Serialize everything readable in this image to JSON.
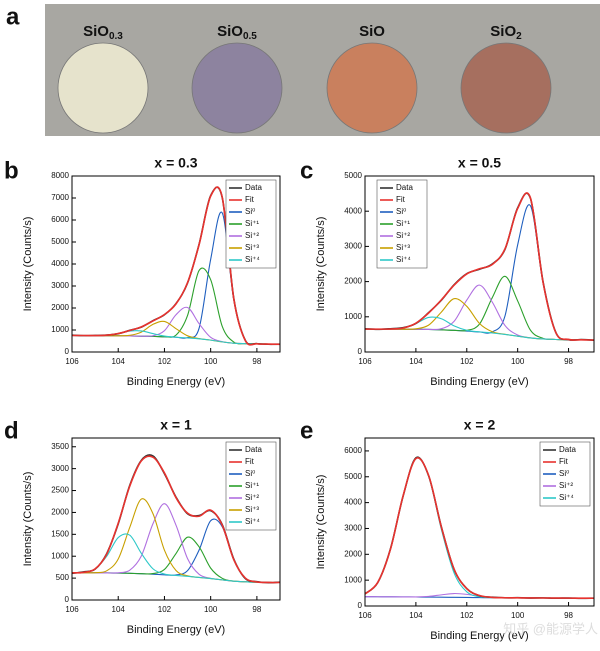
{
  "panel_labels": [
    "a",
    "b",
    "c",
    "d",
    "e"
  ],
  "photo": {
    "samples": [
      {
        "formula": "SiO",
        "subscript": "0.3",
        "color": "#e6e3cc"
      },
      {
        "formula": "SiO",
        "subscript": "0.5",
        "color": "#8d839f"
      },
      {
        "formula": "SiO",
        "subscript": null,
        "color": "#c9805e"
      },
      {
        "formula": "SiO",
        "subscript": "2",
        "color": "#a66f5f"
      }
    ]
  },
  "watermark": "知乎 @能源学人",
  "chart_data": [
    {
      "type": "line",
      "title": "x = 0.3",
      "x_label": "Binding Energy (eV)",
      "y_label": "Intensity (Counts/s)",
      "x": [
        106,
        105.5,
        105,
        104.5,
        104,
        103.5,
        103,
        102.5,
        102,
        101.5,
        101,
        100.5,
        100,
        99.5,
        99,
        98.5,
        98,
        97.5,
        97
      ],
      "xlim": [
        106,
        97
      ],
      "xticks": [
        106,
        104,
        102,
        100,
        98
      ],
      "ylim": [
        0,
        8000
      ],
      "yticks": [
        0,
        1000,
        2000,
        3000,
        4000,
        5000,
        6000,
        7000,
        8000
      ],
      "legend": "upper right",
      "series": [
        {
          "name": "Data",
          "color": "#333333",
          "values": [
            762,
            744,
            753,
            770,
            833,
            986,
            1131,
            1421,
            1692,
            2201,
            3138,
            4902,
            7110,
            7018,
            2436,
            530,
            381,
            352,
            356
          ]
        },
        {
          "name": "Fit",
          "color": "#e8322e",
          "values": [
            750,
            750,
            748,
            764,
            840,
            978,
            1142,
            1410,
            1704,
            2187,
            3153,
            4886,
            7084,
            7037,
            2419,
            518,
            372,
            360,
            350
          ]
        },
        {
          "name": "Si⁰",
          "color": "#1f5fbf",
          "values": [
            750,
            750,
            745,
            740,
            735,
            730,
            720,
            710,
            690,
            670,
            653,
            1082,
            4212,
            6323,
            2366,
            518,
            372,
            360,
            350
          ]
        },
        {
          "name": "Si⁺¹",
          "color": "#2ca02c",
          "values": [
            750,
            750,
            745,
            740,
            735,
            730,
            720,
            710,
            693,
            768,
            1662,
            3707,
            3287,
            1166,
            453,
            380,
            370,
            360,
            350
          ]
        },
        {
          "name": "Si⁺²",
          "color": "#b070e0",
          "values": [
            750,
            750,
            745,
            740,
            735,
            730,
            720,
            738,
            969,
            1694,
            2022,
            1287,
            665,
            468,
            400,
            380,
            370,
            360,
            350
          ]
        },
        {
          "name": "Si⁺³",
          "color": "#c8a000",
          "values": [
            750,
            750,
            745,
            740,
            737,
            758,
            906,
            1255,
            1388,
            1061,
            736,
            610,
            540,
            460,
            400,
            380,
            370,
            360,
            350
          ]
        },
        {
          "name": "Si⁺⁴",
          "color": "#2ec8c8",
          "values": [
            750,
            750,
            748,
            764,
            838,
            950,
            956,
            837,
            724,
            674,
            640,
            600,
            540,
            460,
            400,
            380,
            370,
            360,
            350
          ]
        }
      ]
    },
    {
      "type": "line",
      "title": "x = 0.5",
      "x_label": "Binding Energy (eV)",
      "y_label": "Intensity (Counts/s)",
      "x": [
        106,
        105.5,
        105,
        104.5,
        104,
        103.5,
        103,
        102.5,
        102,
        101.5,
        101,
        100.5,
        100,
        99.5,
        99,
        98.5,
        98,
        97.5,
        97
      ],
      "xlim": [
        106,
        97
      ],
      "xticks": [
        106,
        104,
        102,
        100,
        98
      ],
      "ylim": [
        0,
        5000
      ],
      "yticks": [
        0,
        1000,
        2000,
        3000,
        4000,
        5000
      ],
      "legend": "upper left",
      "series": [
        {
          "name": "Data",
          "color": "#333333",
          "values": [
            658,
            643,
            660,
            690,
            812,
            1118,
            1470,
            1910,
            2226,
            2352,
            2501,
            2915,
            4095,
            4370,
            1988,
            556,
            350,
            352,
            334
          ]
        },
        {
          "name": "Fit",
          "color": "#e8322e",
          "values": [
            650,
            650,
            653,
            682,
            820,
            1108,
            1481,
            1897,
            2218,
            2365,
            2487,
            2927,
            4078,
            4382,
            1970,
            548,
            357,
            345,
            340
          ]
        },
        {
          "name": "Si⁰",
          "color": "#1f5fbf",
          "values": [
            650,
            650,
            650,
            648,
            645,
            640,
            630,
            615,
            595,
            570,
            570,
            1020,
            3045,
            4157,
            1952,
            548,
            357,
            345,
            340
          ]
        },
        {
          "name": "Si⁺¹",
          "color": "#2ca02c",
          "values": [
            650,
            650,
            650,
            648,
            645,
            640,
            630,
            615,
            613,
            793,
            1541,
            2150,
            1451,
            623,
            388,
            355,
            350,
            345,
            340
          ]
        },
        {
          "name": "Si⁺²",
          "color": "#b070e0",
          "values": [
            650,
            650,
            650,
            648,
            645,
            642,
            662,
            870,
            1475,
            1900,
            1420,
            755,
            482,
            402,
            370,
            355,
            350,
            345,
            340
          ]
        },
        {
          "name": "Si⁺³",
          "color": "#c8a000",
          "values": [
            650,
            650,
            650,
            648,
            658,
            764,
            1134,
            1515,
            1298,
            810,
            576,
            502,
            450,
            400,
            370,
            355,
            350,
            345,
            340
          ]
        },
        {
          "name": "Si⁺⁴",
          "color": "#2ec8c8",
          "values": [
            650,
            650,
            653,
            682,
            807,
            982,
            945,
            742,
            617,
            572,
            540,
            500,
            450,
            400,
            370,
            355,
            350,
            345,
            340
          ]
        }
      ]
    },
    {
      "type": "line",
      "title": "x = 1",
      "x_label": "Binding Energy (eV)",
      "y_label": "Intensity (Counts/s)",
      "x": [
        106,
        105.5,
        105,
        104.5,
        104,
        103.5,
        103,
        102.5,
        102,
        101.5,
        101,
        100.5,
        100,
        99.5,
        99,
        98.5,
        98,
        97.5,
        97
      ],
      "xlim": [
        106,
        97
      ],
      "xticks": [
        106,
        104,
        102,
        100,
        98
      ],
      "ylim": [
        0,
        3700
      ],
      "yticks": [
        0,
        500,
        1000,
        1500,
        2000,
        2500,
        3000,
        3500
      ],
      "legend": "upper right",
      "series": [
        {
          "name": "Data",
          "color": "#333333",
          "values": [
            610,
            642,
            705,
            1058,
            1740,
            2620,
            3190,
            3290,
            2885,
            2350,
            1970,
            1930,
            2040,
            1722,
            935,
            490,
            420,
            395,
            408
          ]
        },
        {
          "name": "Fit",
          "color": "#e8322e",
          "values": [
            621,
            630,
            711,
            1044,
            1754,
            2602,
            3177,
            3262,
            2902,
            2337,
            1983,
            1913,
            2054,
            1710,
            921,
            501,
            412,
            400,
            400
          ]
        },
        {
          "name": "Si⁰",
          "color": "#1f5fbf",
          "values": [
            620,
            620,
            620,
            618,
            615,
            610,
            600,
            590,
            575,
            572,
            671,
            1142,
            1810,
            1675,
            919,
            501,
            412,
            400,
            400
          ]
        },
        {
          "name": "Si⁺¹",
          "color": "#2ca02c",
          "values": [
            620,
            620,
            620,
            618,
            615,
            610,
            600,
            603,
            698,
            1061,
            1435,
            1214,
            728,
            495,
            432,
            415,
            405,
            400,
            400
          ]
        },
        {
          "name": "Si⁺²",
          "color": "#b070e0",
          "values": [
            620,
            620,
            620,
            618,
            621,
            682,
            1005,
            1739,
            2200,
            1709,
            945,
            587,
            496,
            460,
            430,
            415,
            405,
            400,
            400
          ]
        },
        {
          "name": "Si⁺³",
          "color": "#c8a000",
          "values": [
            620,
            620,
            624,
            667,
            937,
            1660,
            2306,
            1976,
            1137,
            674,
            552,
            515,
            490,
            460,
            430,
            415,
            405,
            400,
            400
          ]
        },
        {
          "name": "Si⁺⁴",
          "color": "#2ec8c8",
          "values": [
            621,
            630,
            707,
            997,
            1426,
            1480,
            1066,
            714,
            592,
            561,
            540,
            515,
            490,
            460,
            430,
            415,
            405,
            400,
            400
          ]
        }
      ]
    },
    {
      "type": "line",
      "title": "x = 2",
      "x_label": "Binding Energy (eV)",
      "y_label": "Intensity (Counts/s)",
      "x": [
        106,
        105.5,
        105,
        104.5,
        104,
        103.5,
        103,
        102.5,
        102,
        101.5,
        101,
        100.5,
        100,
        99.5,
        99,
        98.5,
        98,
        97.5,
        97
      ],
      "xlim": [
        106,
        97
      ],
      "xticks": [
        106,
        104,
        102,
        100,
        98
      ],
      "ylim": [
        0,
        6500
      ],
      "yticks": [
        0,
        1000,
        2000,
        3000,
        4000,
        5000,
        6000
      ],
      "legend": "upper right",
      "series": [
        {
          "name": "Data",
          "color": "#333333",
          "values": [
            475,
            905,
            2210,
            4260,
            5730,
            5040,
            3070,
            1420,
            675,
            398,
            340,
            315,
            320,
            308,
            314,
            302,
            309,
            298,
            305
          ]
        },
        {
          "name": "Fit",
          "color": "#e8322e",
          "values": [
            467,
            912,
            2196,
            4272,
            5704,
            5055,
            3059,
            1429,
            668,
            406,
            333,
            319,
            315,
            312,
            310,
            308,
            305,
            303,
            300
          ]
        },
        {
          "name": "Si⁰",
          "color": "#1f5fbf",
          "values": [
            360,
            358,
            355,
            352,
            348,
            344,
            340,
            335,
            330,
            325,
            320,
            318,
            315,
            312,
            310,
            308,
            305,
            303,
            300
          ]
        },
        {
          "name": "Si⁺²",
          "color": "#b070e0",
          "values": [
            360,
            358,
            355,
            352,
            352,
            372,
            431,
            483,
            450,
            374,
            330,
            319,
            315,
            312,
            310,
            308,
            305,
            303,
            300
          ]
        },
        {
          "name": "Si⁺⁴",
          "color": "#2ec8c8",
          "values": [
            467,
            912,
            2196,
            4272,
            5700,
            5027,
            2968,
            1281,
            548,
            357,
            323,
            318,
            315,
            312,
            310,
            308,
            305,
            303,
            300
          ]
        }
      ]
    }
  ]
}
